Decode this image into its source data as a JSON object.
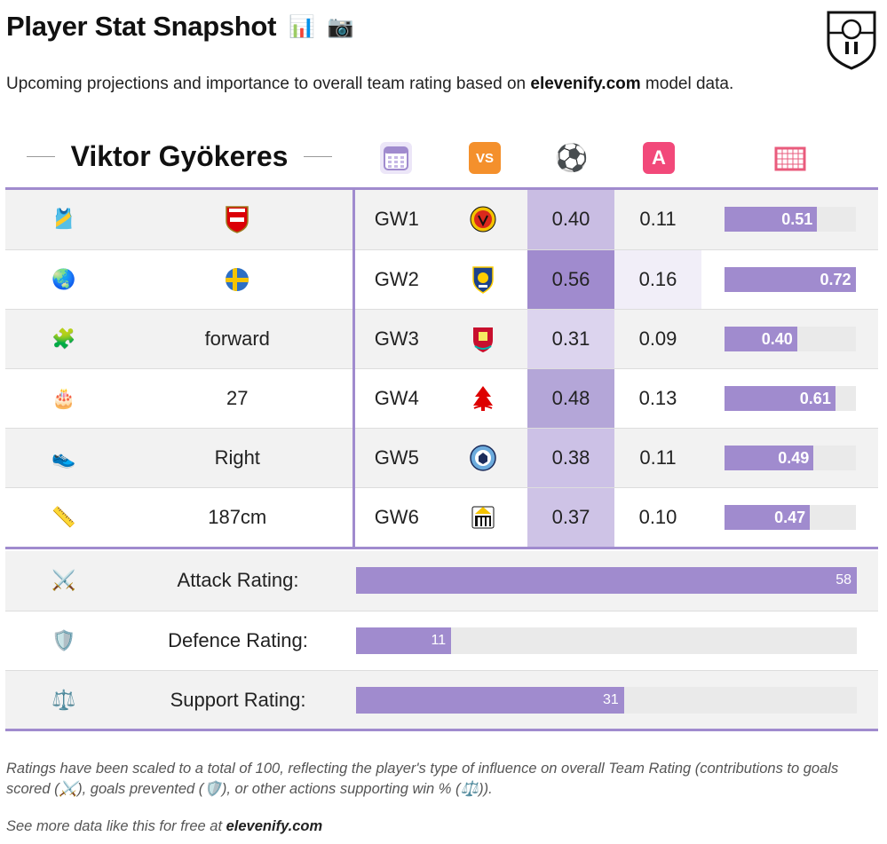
{
  "title": "Player Stat Snapshot",
  "title_emojis": [
    "📊",
    "📷"
  ],
  "subtitle_pre": "Upcoming projections and importance to overall team rating based on ",
  "subtitle_site": "elevenify.com",
  "subtitle_post": " model data.",
  "player_name": "Viktor Gyökeres",
  "header_icons": {
    "calendar": "calendar-icon",
    "vs": "VS",
    "ball": "⚽",
    "assist": "A",
    "goal": "goal-net-icon"
  },
  "rows": [
    {
      "attr_icon": "🎽",
      "attr_icon_name": "shirt-icon",
      "attr_value": "",
      "attr_kind": "arsenal-crest",
      "gw": "GW1",
      "opp_name": "manchester-united-crest",
      "goal": "0.40",
      "assist": "0.11",
      "total": "0.51",
      "total_frac": 0.51,
      "goal_shade": "#c9bde3"
    },
    {
      "attr_icon": "🌏",
      "attr_icon_name": "globe-icon",
      "attr_value": "",
      "attr_kind": "sweden-flag",
      "gw": "GW2",
      "opp_name": "leeds-crest",
      "goal": "0.56",
      "assist": "0.16",
      "total": "0.72",
      "total_frac": 0.72,
      "goal_shade": "#a08bce"
    },
    {
      "attr_icon": "🧩",
      "attr_icon_name": "puzzle-icon",
      "attr_value": "forward",
      "attr_kind": "text",
      "gw": "GW3",
      "opp_name": "liverpool-crest",
      "goal": "0.31",
      "assist": "0.09",
      "total": "0.40",
      "total_frac": 0.4,
      "goal_shade": "#dcd4ee"
    },
    {
      "attr_icon": "🎂",
      "attr_icon_name": "cake-icon",
      "attr_value": "27",
      "attr_kind": "text",
      "gw": "GW4",
      "opp_name": "nottingham-forest-crest",
      "goal": "0.48",
      "assist": "0.13",
      "total": "0.61",
      "total_frac": 0.61,
      "goal_shade": "#b4a6d8"
    },
    {
      "attr_icon": "👟",
      "attr_icon_name": "shoe-icon",
      "attr_value": "Right",
      "attr_kind": "text",
      "gw": "GW5",
      "opp_name": "manchester-city-crest",
      "goal": "0.38",
      "assist": "0.11",
      "total": "0.49",
      "total_frac": 0.49,
      "goal_shade": "#ccc1e6"
    },
    {
      "attr_icon": "📏",
      "attr_icon_name": "ruler-icon",
      "attr_value": "187cm",
      "attr_kind": "text",
      "gw": "GW6",
      "opp_name": "newcastle-crest",
      "goal": "0.37",
      "assist": "0.10",
      "total": "0.47",
      "total_frac": 0.47,
      "goal_shade": "#cec3e6"
    }
  ],
  "ratings": [
    {
      "icon": "⚔️",
      "icon_name": "crossed-swords-icon",
      "label": "Attack Rating:",
      "value": "58",
      "frac": 1.0
    },
    {
      "icon": "🛡️",
      "icon_name": "shield-icon",
      "label": "Defence Rating:",
      "value": "11",
      "frac": 0.19
    },
    {
      "icon": "⚖️",
      "icon_name": "scales-icon",
      "label": "Support Rating:",
      "value": "31",
      "frac": 0.535
    }
  ],
  "footnote": "Ratings have been scaled to a total of 100, reflecting the player's type of influence on overall Team Rating (contributions to goals scored (⚔️), goals prevented (🛡️), or other actions supporting win % (⚖️)).",
  "footer_pre": "See more data like this for free at ",
  "footer_site": "elevenify.com",
  "colors": {
    "accent": "#a08bce",
    "bar_bg": "#eaeaea",
    "row_alt": "#f2f2f2"
  }
}
